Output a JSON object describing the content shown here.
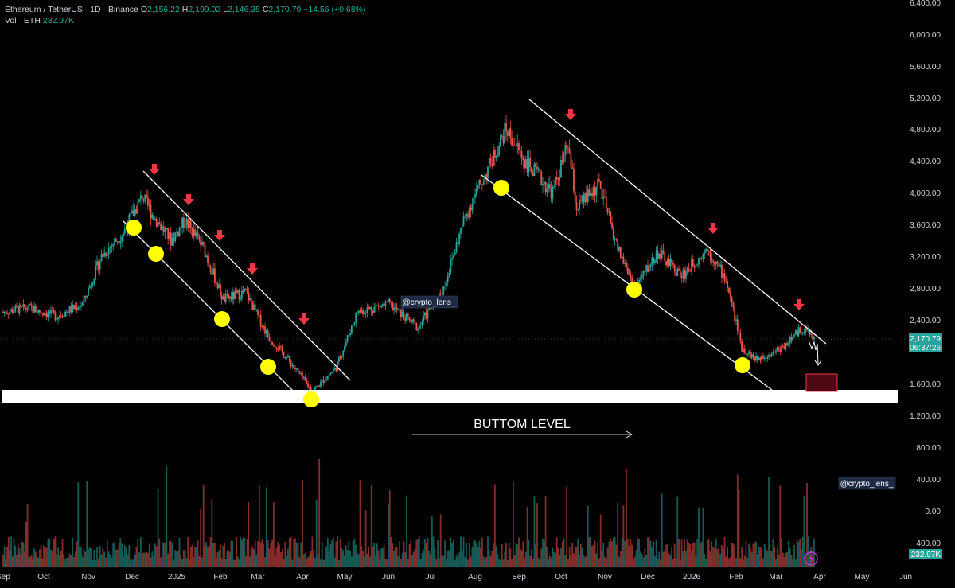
{
  "header": {
    "symbol": "Ethereum / TetherUS · 1D · Binance",
    "open_label": "O",
    "open": "2,156.22",
    "high_label": "H",
    "high": "2,199.02",
    "low_label": "L",
    "low": "2,146.35",
    "close_label": "C",
    "close": "2,170.79",
    "change": "+14.56 (+0.68%)",
    "vol_label": "Vol · ETH",
    "vol_value": "232.97K"
  },
  "price_tag": {
    "price": "2,170.79",
    "countdown": "06:37:26"
  },
  "volume_tag": "232.97K",
  "watermark": "@crypto_lens_",
  "annotation": "BUTTOM LEVEL",
  "colors": {
    "up": "#26a69a",
    "down": "#ef5350",
    "marker": "#ffff00",
    "arrow": "#f23645",
    "zone": "#ffffff",
    "bg": "#000000"
  },
  "chart_data": [
    {
      "type": "candlestick",
      "title": "Ethereum / TetherUS · 1D · Binance",
      "yaxis_ticks": [
        "6,400.00",
        "6,000.00",
        "5,600.00",
        "5,200.00",
        "4,800.00",
        "4,400.00",
        "4,000.00",
        "3,600.00",
        "3,200.00",
        "2,800.00",
        "2,400.00",
        "1,600.00",
        "1,200.00"
      ],
      "ylim": [
        1200,
        6400
      ],
      "xaxis_ticks": [
        "Sep",
        "Oct",
        "Nov",
        "Dec",
        "2025",
        "Feb",
        "Mar",
        "Apr",
        "May",
        "Jun",
        "Jul",
        "Aug",
        "Sep",
        "Oct",
        "Nov",
        "Dec",
        "2026",
        "Feb",
        "Mar",
        "Apr",
        "May",
        "Jun"
      ],
      "price_path": [
        {
          "x": "2024-09-01",
          "y": 2500
        },
        {
          "x": "2024-09-20",
          "y": 2550
        },
        {
          "x": "2024-10-10",
          "y": 2450
        },
        {
          "x": "2024-10-28",
          "y": 2600
        },
        {
          "x": "2024-11-10",
          "y": 3200
        },
        {
          "x": "2024-11-25",
          "y": 3500
        },
        {
          "x": "2024-12-08",
          "y": 3950
        },
        {
          "x": "2024-12-16",
          "y": 3700
        },
        {
          "x": "2024-12-28",
          "y": 3400
        },
        {
          "x": "2025-01-07",
          "y": 3650
        },
        {
          "x": "2025-01-20",
          "y": 3300
        },
        {
          "x": "2025-02-03",
          "y": 2650
        },
        {
          "x": "2025-02-20",
          "y": 2750
        },
        {
          "x": "2025-03-08",
          "y": 2200
        },
        {
          "x": "2025-03-20",
          "y": 1950
        },
        {
          "x": "2025-04-08",
          "y": 1500
        },
        {
          "x": "2025-04-25",
          "y": 1800
        },
        {
          "x": "2025-05-10",
          "y": 2500
        },
        {
          "x": "2025-06-01",
          "y": 2600
        },
        {
          "x": "2025-06-22",
          "y": 2300
        },
        {
          "x": "2025-07-10",
          "y": 2800
        },
        {
          "x": "2025-07-25",
          "y": 3700
        },
        {
          "x": "2025-08-10",
          "y": 4300
        },
        {
          "x": "2025-08-23",
          "y": 4800
        },
        {
          "x": "2025-09-05",
          "y": 4400
        },
        {
          "x": "2025-09-25",
          "y": 4000
        },
        {
          "x": "2025-10-06",
          "y": 4600
        },
        {
          "x": "2025-10-12",
          "y": 3800
        },
        {
          "x": "2025-10-28",
          "y": 4100
        },
        {
          "x": "2025-11-10",
          "y": 3300
        },
        {
          "x": "2025-11-22",
          "y": 2800
        },
        {
          "x": "2025-12-08",
          "y": 3250
        },
        {
          "x": "2025-12-25",
          "y": 2950
        },
        {
          "x": "2026-01-12",
          "y": 3300
        },
        {
          "x": "2026-01-25",
          "y": 2900
        },
        {
          "x": "2026-02-05",
          "y": 2050
        },
        {
          "x": "2026-02-15",
          "y": 1900
        },
        {
          "x": "2026-03-05",
          "y": 2050
        },
        {
          "x": "2026-03-20",
          "y": 2300
        },
        {
          "x": "2026-03-28",
          "y": 2170
        }
      ],
      "current_price": 2170.79,
      "support_zone": [
        1450,
        1550
      ],
      "target_zone": [
        1600,
        1750
      ],
      "annotations": [
        "BUTTOM LEVEL",
        "@crypto_lens_"
      ]
    },
    {
      "type": "bar",
      "title": "Vol · ETH",
      "yaxis_ticks": [
        "800.00",
        "400.00",
        "0.00",
        "−400.00"
      ],
      "last_value": "232.97K"
    }
  ]
}
